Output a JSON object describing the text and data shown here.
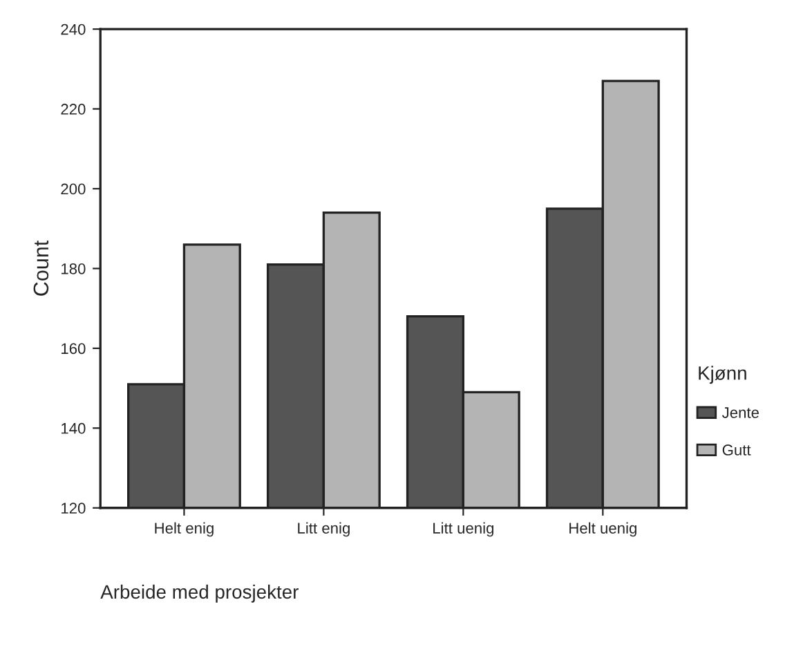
{
  "chart_data": {
    "type": "bar",
    "xlabel": "Arbeide med prosjekter",
    "ylabel": "Count",
    "legend_title": "Kjønn",
    "categories": [
      "Helt enig",
      "Litt enig",
      "Litt uenig",
      "Helt uenig"
    ],
    "series": [
      {
        "name": "Jente",
        "color": "#555555",
        "values": [
          151,
          181,
          168,
          195
        ]
      },
      {
        "name": "Gutt",
        "color": "#b4b4b4",
        "values": [
          186,
          194,
          149,
          227
        ]
      }
    ],
    "ylim": [
      120,
      240
    ],
    "yticks": [
      120,
      140,
      160,
      180,
      200,
      220,
      240
    ],
    "grid": false,
    "legend": "right"
  }
}
